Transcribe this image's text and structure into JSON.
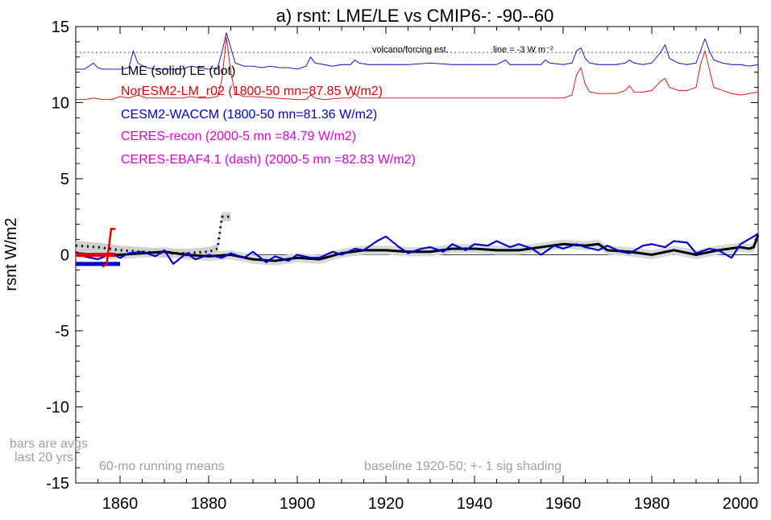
{
  "chart_data": {
    "type": "line",
    "title": "a) rsnt: LME/LE vs CMIP6-: -90--60",
    "ylabel": "rsnt W/m2",
    "xlim": [
      1850,
      2004
    ],
    "ylim": [
      -15,
      15
    ],
    "xticks": [
      1860,
      1880,
      1900,
      1920,
      1940,
      1960,
      1980,
      2000
    ],
    "yticks": [
      15,
      10,
      5,
      0,
      -5,
      -10,
      -15
    ],
    "legend": [
      {
        "text": "LME (solid)   LE (dot)",
        "color": "#000000"
      },
      {
        "text": "NorESM2-LM_r02 (1800-50 mn=87.85 W/m2)",
        "color": "#e00000"
      },
      {
        "text": "CESM2-WACCM (1800-50 mn=81.36 W/m2)",
        "color": "#0000cc"
      },
      {
        "text": "CERES-recon (2000-5 mn =84.79 W/m2)",
        "color": "#dd00dd"
      },
      {
        "text": "CERES-EBAF4.1 (dash) (2000-5 mn =82.83 W/m2)",
        "color": "#dd00dd"
      }
    ],
    "annotations": {
      "volcano": "volcano/forcing est.",
      "line_label": "line = -3 W m⁻²",
      "bars": [
        "bars are avgs",
        "last 20 yrs"
      ],
      "running": "60-mo running means",
      "baseline": "baseline 1920-50; +- 1 sig shading"
    },
    "series": [
      {
        "name": "CESM2-WACCM forcing",
        "color": "#0000cc",
        "x": [
          1850,
          1852,
          1854,
          1855,
          1856,
          1858,
          1860,
          1862,
          1863,
          1864,
          1866,
          1868,
          1870,
          1872,
          1874,
          1876,
          1878,
          1880,
          1882,
          1883,
          1884,
          1885,
          1886,
          1888,
          1890,
          1892,
          1894,
          1896,
          1898,
          1900,
          1902,
          1903,
          1904,
          1906,
          1908,
          1910,
          1912,
          1913,
          1914,
          1916,
          1918,
          1920,
          1925,
          1930,
          1935,
          1940,
          1945,
          1947,
          1948,
          1950,
          1955,
          1956,
          1957,
          1960,
          1962,
          1963,
          1964,
          1965,
          1966,
          1968,
          1970,
          1972,
          1974,
          1975,
          1976,
          1978,
          1980,
          1982,
          1983,
          1984,
          1986,
          1988,
          1990,
          1991,
          1992,
          1993,
          1994,
          1996,
          1998,
          2000,
          2002,
          2004
        ],
        "y": [
          12.2,
          12.2,
          12.6,
          12.3,
          12.2,
          12.2,
          12.2,
          12.3,
          13.4,
          12.6,
          12.3,
          12.2,
          12.2,
          12.2,
          12.2,
          12.4,
          12.3,
          12.2,
          12.3,
          13.3,
          14.6,
          13.6,
          12.6,
          12.4,
          12.4,
          12.3,
          12.4,
          12.3,
          12.3,
          12.2,
          12.4,
          13.0,
          12.6,
          12.5,
          12.4,
          12.5,
          12.5,
          12.8,
          12.6,
          12.5,
          12.5,
          12.5,
          12.5,
          12.6,
          12.5,
          12.5,
          12.5,
          12.8,
          12.5,
          12.5,
          12.5,
          12.8,
          12.6,
          12.5,
          12.6,
          13.4,
          13.6,
          12.9,
          12.6,
          12.5,
          12.5,
          12.5,
          12.6,
          12.8,
          12.6,
          12.5,
          12.6,
          13.3,
          13.8,
          12.9,
          12.6,
          12.5,
          12.6,
          13.4,
          14.2,
          13.4,
          12.8,
          12.6,
          12.5,
          12.5,
          12.4,
          12.5
        ]
      },
      {
        "name": "NorESM2-LM forcing",
        "color": "#e00000",
        "x": [
          1850,
          1852,
          1854,
          1856,
          1858,
          1860,
          1862,
          1864,
          1866,
          1868,
          1870,
          1872,
          1874,
          1876,
          1878,
          1880,
          1882,
          1883,
          1884,
          1885,
          1886,
          1888,
          1890,
          1895,
          1900,
          1902,
          1903,
          1904,
          1906,
          1910,
          1912,
          1913,
          1914,
          1920,
          1930,
          1940,
          1950,
          1955,
          1960,
          1962,
          1963,
          1964,
          1965,
          1966,
          1968,
          1970,
          1972,
          1974,
          1975,
          1976,
          1978,
          1980,
          1982,
          1983,
          1984,
          1986,
          1988,
          1990,
          1991,
          1992,
          1993,
          1994,
          1996,
          1998,
          2000,
          2002,
          2004
        ],
        "y": [
          10.2,
          10.2,
          10.3,
          10.2,
          10.2,
          10.4,
          10.3,
          10.5,
          10.3,
          10.3,
          10.3,
          10.3,
          10.3,
          10.4,
          10.3,
          10.3,
          10.4,
          11.5,
          14.3,
          12.0,
          10.6,
          10.4,
          10.4,
          10.3,
          10.2,
          10.2,
          10.5,
          10.3,
          10.2,
          10.3,
          10.3,
          10.6,
          10.3,
          10.3,
          10.3,
          10.3,
          10.3,
          10.3,
          10.3,
          10.5,
          11.8,
          12.3,
          11.2,
          10.7,
          10.6,
          10.6,
          10.6,
          10.8,
          11.1,
          10.7,
          10.7,
          10.8,
          11.4,
          11.6,
          11.0,
          10.8,
          10.8,
          11.0,
          12.5,
          13.4,
          12.2,
          11.0,
          10.8,
          10.6,
          10.5,
          10.6,
          10.7
        ]
      },
      {
        "name": "LME",
        "color": "#000000",
        "x": [
          1850,
          1855,
          1860,
          1865,
          1870,
          1875,
          1880,
          1885,
          1890,
          1895,
          1900,
          1905,
          1910,
          1915,
          1920,
          1925,
          1930,
          1935,
          1940,
          1945,
          1950,
          1955,
          1960,
          1965,
          1968,
          1970,
          1975,
          1980,
          1985,
          1990,
          1995,
          2000,
          2002,
          2003,
          2004
        ],
        "y": [
          0.1,
          0.0,
          0.0,
          0.1,
          0.2,
          0.0,
          -0.1,
          0.0,
          -0.3,
          -0.4,
          -0.2,
          -0.3,
          0.1,
          0.3,
          0.3,
          0.2,
          0.2,
          0.4,
          0.4,
          0.3,
          0.3,
          0.5,
          0.7,
          0.6,
          0.7,
          0.3,
          0.2,
          0.0,
          0.3,
          0.0,
          0.3,
          0.5,
          0.4,
          0.5,
          1.3
        ]
      },
      {
        "name": "LE",
        "color": "#000000",
        "x": [
          1850,
          1855,
          1860,
          1865,
          1870,
          1875,
          1880,
          1882,
          1883,
          1885
        ],
        "y": [
          0.6,
          0.5,
          0.3,
          0.2,
          0.1,
          0.1,
          0.2,
          0.4,
          2.5,
          2.5
        ]
      },
      {
        "name": "CESM2-WACCM",
        "color": "#0000cc",
        "x": [
          1850,
          1852,
          1855,
          1858,
          1860,
          1862,
          1865,
          1868,
          1870,
          1872,
          1875,
          1877,
          1880,
          1883,
          1885,
          1888,
          1890,
          1893,
          1895,
          1898,
          1900,
          1903,
          1905,
          1908,
          1910,
          1913,
          1915,
          1918,
          1920,
          1923,
          1925,
          1928,
          1930,
          1933,
          1935,
          1938,
          1940,
          1943,
          1945,
          1948,
          1950,
          1953,
          1955,
          1958,
          1960,
          1963,
          1965,
          1968,
          1970,
          1973,
          1975,
          1978,
          1980,
          1983,
          1985,
          1988,
          1990,
          1993,
          1995,
          1998,
          2000,
          2003,
          2004
        ],
        "y": [
          0.2,
          -0.1,
          -0.3,
          0.1,
          -0.2,
          0.1,
          0.2,
          -0.1,
          0.3,
          -0.6,
          0.1,
          -0.3,
          0.0,
          -0.2,
          0.1,
          -0.2,
          0.2,
          -0.5,
          -0.1,
          -0.4,
          0.0,
          -0.2,
          -0.2,
          0.2,
          0.0,
          0.4,
          0.3,
          0.9,
          1.2,
          0.5,
          0.1,
          0.4,
          0.5,
          0.2,
          0.7,
          0.3,
          0.7,
          0.6,
          0.9,
          0.5,
          0.7,
          0.4,
          0.0,
          0.6,
          0.4,
          0.7,
          0.5,
          0.3,
          0.6,
          0.2,
          0.1,
          0.6,
          0.7,
          0.5,
          0.9,
          0.8,
          0.1,
          0.4,
          0.3,
          -0.2,
          0.7,
          1.2,
          1.4
        ]
      }
    ],
    "bars": [
      {
        "name": "LME bar",
        "color": "#000000",
        "x": [
          1850,
          1859
        ],
        "y": 0.0
      },
      {
        "name": "NorESM2-LM bar",
        "color": "#e00000",
        "x": [
          1850,
          1859
        ],
        "y": 0.0
      },
      {
        "name": "CESM2-WACCM bar",
        "color": "#0000cc",
        "x": [
          1850,
          1860
        ],
        "y": -0.6
      }
    ]
  }
}
